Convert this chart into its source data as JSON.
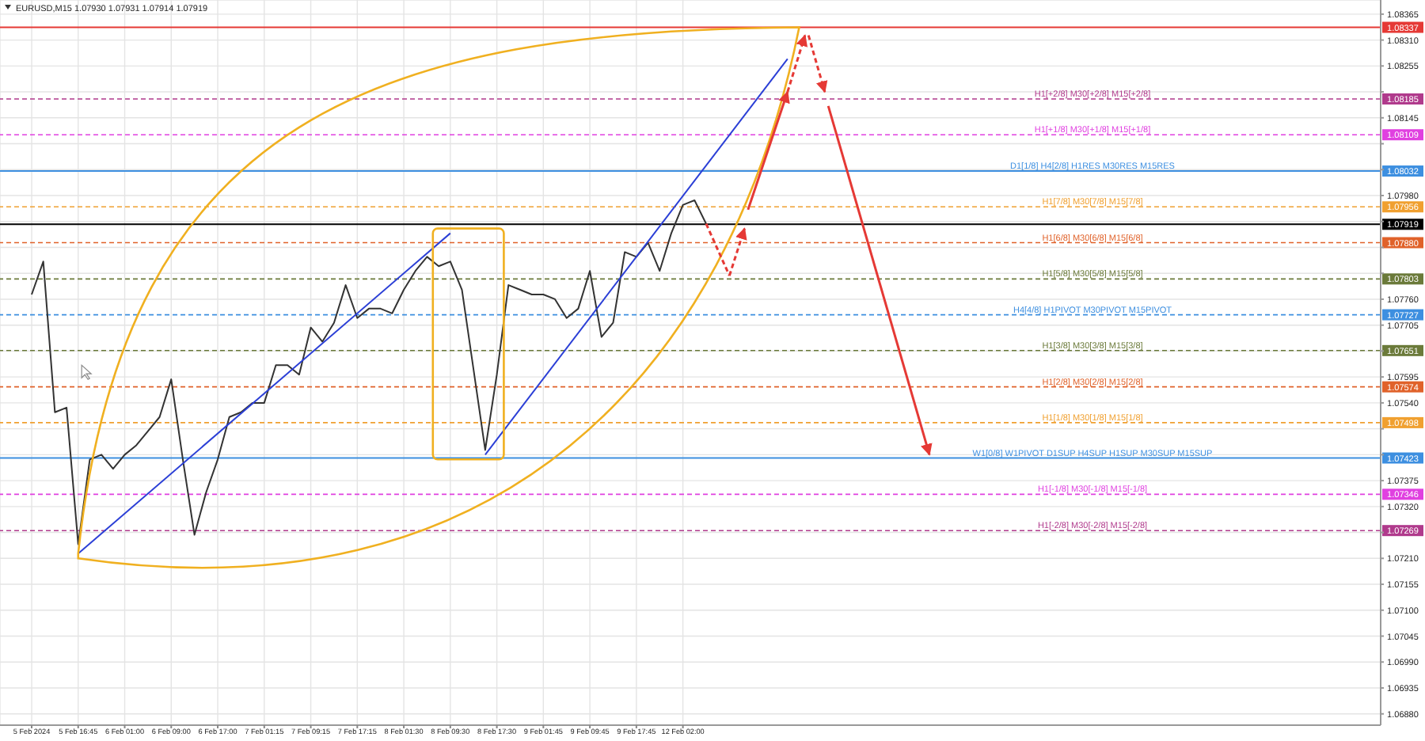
{
  "chart_data": {
    "type": "line",
    "title": "EURUSD,M15 1.07930 1.07931 1.07914 1.07919",
    "categories": [
      "5 Feb 2024",
      null,
      null,
      null,
      "5 Feb 16:45",
      null,
      null,
      null,
      "6 Feb 01:00",
      null,
      null,
      null,
      "6 Feb 09:00",
      null,
      null,
      null,
      "6 Feb 17:00",
      null,
      null,
      null,
      "7 Feb 01:15",
      null,
      null,
      null,
      "7 Feb 09:15",
      null,
      null,
      null,
      "7 Feb 17:15",
      null,
      null,
      null,
      "8 Feb 01:30",
      null,
      null,
      null,
      "8 Feb 09:30",
      null,
      null,
      null,
      "8 Feb 17:30",
      null,
      null,
      null,
      "9 Feb 01:45",
      null,
      null,
      null,
      "9 Feb 09:45",
      null,
      null,
      null,
      "9 Feb 17:45",
      null,
      null,
      null,
      "12 Feb 02:00",
      null,
      null,
      null,
      null,
      null,
      null,
      null,
      null,
      null,
      null,
      null,
      null,
      null,
      null,
      null,
      null,
      null,
      null,
      null,
      null,
      null,
      null,
      null,
      null,
      null,
      null,
      null,
      null,
      null,
      null,
      null,
      null,
      null,
      null,
      null,
      null,
      null,
      null,
      null,
      null,
      null,
      null,
      null,
      null,
      null,
      null,
      null,
      null,
      null,
      null,
      null,
      null,
      null,
      null,
      null,
      null,
      null,
      null,
      null,
      null
    ],
    "series": [
      {
        "color": "#333333",
        "values": [
          1.0777,
          1.0784,
          1.0752,
          1.0753,
          1.0724,
          1.0742,
          1.0743,
          1.074,
          1.0743,
          1.0745,
          1.0748,
          1.0751,
          1.0759,
          1.0742,
          1.0726,
          1.0735,
          1.0742,
          1.0751,
          1.0752,
          1.0754,
          1.0754,
          1.0762,
          1.0762,
          1.076,
          1.077,
          1.0767,
          1.0771,
          1.0779,
          1.0772,
          1.0774,
          1.0774,
          1.0773,
          1.0778,
          1.0782,
          1.0785,
          1.0783,
          1.0784,
          1.0778,
          1.0761,
          1.0744,
          1.076,
          1.0779,
          1.0778,
          1.0777,
          1.0777,
          1.0776,
          1.0772,
          1.0774,
          1.0782,
          1.0768,
          1.0771,
          1.0786,
          1.0785,
          1.0788,
          1.0782,
          1.079,
          1.0796,
          1.0797,
          1.0792,
          null,
          null,
          null,
          null,
          null,
          null,
          null,
          null,
          null,
          null,
          null,
          null,
          null,
          null,
          null,
          null,
          null,
          null,
          null,
          null,
          null,
          null,
          null,
          null,
          null,
          null,
          null,
          null,
          null,
          null,
          null,
          null,
          null,
          null,
          null,
          null,
          null,
          null,
          null,
          null,
          null,
          null,
          null,
          null,
          null,
          null,
          null,
          null,
          null,
          null,
          null,
          null,
          null,
          null,
          null,
          null,
          null,
          null
        ]
      },
      {
        "type": "line",
        "color": "#2b3fd6",
        "values": [
          null,
          null,
          null,
          null,
          1.0722,
          null,
          null,
          null,
          null,
          null,
          null,
          null,
          null,
          null,
          null,
          null,
          null,
          null,
          null,
          null,
          null,
          null,
          null,
          null,
          null,
          null,
          null,
          null,
          null,
          null,
          null,
          null,
          null,
          null,
          null,
          null,
          1.079,
          null,
          null,
          null,
          null,
          null,
          null,
          null,
          null,
          null,
          null,
          null,
          null,
          null,
          null,
          null,
          null,
          null,
          null,
          null,
          null,
          null,
          null,
          null,
          null,
          null,
          null,
          null,
          null,
          null,
          null,
          null,
          null,
          null,
          null,
          null,
          null,
          null,
          null,
          null,
          null,
          null,
          null,
          null,
          null,
          null,
          null,
          null,
          null,
          null,
          null,
          null,
          null,
          null,
          null,
          null,
          null,
          null,
          null,
          null,
          null,
          null,
          null,
          null,
          null,
          null,
          null,
          null,
          null,
          null,
          null,
          null,
          null,
          null,
          null,
          null,
          null,
          null,
          null,
          null,
          null
        ]
      },
      {
        "type": "line",
        "color": "#2b3fd6",
        "values": [
          null,
          null,
          null,
          null,
          null,
          null,
          null,
          null,
          null,
          null,
          null,
          null,
          null,
          null,
          null,
          null,
          null,
          null,
          null,
          null,
          null,
          null,
          null,
          null,
          null,
          null,
          null,
          null,
          null,
          null,
          null,
          null,
          null,
          null,
          null,
          null,
          null,
          null,
          null,
          1.0743,
          null,
          null,
          null,
          null,
          null,
          null,
          null,
          null,
          null,
          null,
          null,
          null,
          null,
          null,
          null,
          null,
          null,
          null,
          null,
          null,
          null,
          null,
          null,
          null,
          null,
          1.0827,
          null,
          null,
          null,
          null,
          null,
          null,
          null,
          null,
          null,
          null,
          null,
          null,
          null,
          null,
          null,
          null,
          null,
          null,
          null,
          null,
          null,
          null,
          null,
          null,
          null,
          null,
          null,
          null,
          null,
          null,
          null,
          null,
          null,
          null,
          null,
          null,
          null,
          null,
          null,
          null,
          null,
          null,
          null,
          null,
          null,
          null,
          null,
          null,
          null,
          null,
          null
        ]
      }
    ],
    "ylim": [
      1.06856,
      1.08395
    ],
    "yticks": [
      1.08365,
      {
        "value": 1.0831,
        "label": "1.08310"
      },
      1.08255,
      {
        "value": 1.082,
        "label": null
      },
      1.08145,
      {
        "value": 1.0809,
        "label": null
      },
      {
        "value": 1.08035,
        "label": null
      },
      {
        "value": 1.0798,
        "label": "1.07980"
      },
      {
        "value": 1.07925,
        "label": null
      },
      {
        "value": 1.0787,
        "label": null
      },
      {
        "value": 1.07815,
        "label": null
      },
      {
        "value": 1.0776,
        "label": "1.07760"
      },
      {
        "value": 1.07705,
        "label": "1.07705"
      },
      {
        "value": 1.0765,
        "label": null
      },
      1.07595,
      {
        "value": 1.0754,
        "label": "1.07540"
      },
      {
        "value": 1.07485,
        "label": null
      },
      {
        "value": 1.0743,
        "label": null
      },
      1.07375,
      {
        "value": 1.0732,
        "label": "1.07320"
      },
      {
        "value": 1.07265,
        "label": null
      },
      {
        "value": 1.0721,
        "label": "1.07210"
      },
      1.07155,
      {
        "value": 1.071,
        "label": "1.07100"
      },
      1.07045,
      {
        "value": 1.0699,
        "label": "1.06990"
      },
      1.06935,
      {
        "value": 1.0688,
        "label": "1.06880"
      }
    ],
    "grid": true,
    "ref_lines": [
      {
        "axis": "y",
        "value": 1.08337,
        "label": "1.08337",
        "color": "#e53935",
        "line_style": "solid"
      },
      {
        "axis": "y",
        "value": 1.08185,
        "label": "1.08185",
        "color": "#b03a8c",
        "line_style": "dashed"
      },
      {
        "axis": "y",
        "value": 1.08109,
        "label": "1.08109",
        "color": "#e040e0",
        "line_style": "dashed"
      },
      {
        "axis": "y",
        "value": 1.08032,
        "label": "1.08032",
        "color": "#3d8fe0",
        "line_style": "solid"
      },
      {
        "axis": "y",
        "value": 1.07956,
        "label": "1.07956",
        "color": "#f0a030",
        "line_style": "dashed"
      },
      {
        "axis": "y",
        "value": 1.07919,
        "label": "1.07919",
        "color": "#000000",
        "line_style": "solid"
      },
      {
        "axis": "y",
        "value": 1.0788,
        "label": "1.07880",
        "color": "#e0622a",
        "line_style": "dashed"
      },
      {
        "axis": "y",
        "value": 1.07803,
        "label": "1.07803",
        "color": "#6b7a3a",
        "line_style": "dashed"
      },
      {
        "axis": "y",
        "value": 1.07727,
        "label": "1.07727",
        "color": "#3d8fe0",
        "line_style": "dashed"
      },
      {
        "axis": "y",
        "value": 1.07651,
        "label": "1.07651",
        "color": "#6b7a3a",
        "line_style": "dashed"
      },
      {
        "axis": "y",
        "value": 1.07574,
        "label": "1.07574",
        "color": "#e0622a",
        "line_style": "dashed"
      },
      {
        "axis": "y",
        "value": 1.07498,
        "label": "1.07498",
        "color": "#f0a030",
        "line_style": "dashed"
      },
      {
        "axis": "y",
        "value": 1.07423,
        "label": "1.07423",
        "color": "#3d8fe0",
        "line_style": "solid"
      },
      {
        "axis": "y",
        "value": 1.07346,
        "label": "1.07346",
        "color": "#e040e0",
        "line_style": "dashed"
      },
      {
        "axis": "y",
        "value": 1.07269,
        "label": "1.07269",
        "color": "#b03a8c",
        "line_style": "dashed"
      }
    ],
    "annotations": [
      {
        "text": "H1[+2/8] M30[+2/8] M15[+2/8]",
        "y": 1.08185
      },
      {
        "text": "H1[+1/8] M30[+1/8] M15[+1/8]",
        "y": 1.08109
      },
      {
        "text": "D1[1/8] H4[2/8] H1RES M30RES M15RES",
        "y": 1.08032
      },
      {
        "text": "H1[7/8] M30[7/8] M15[7/8]",
        "y": 1.07956
      },
      {
        "text": "H1[6/8] M30[6/8] M15[6/8]",
        "y": 1.0788
      },
      {
        "text": "H1[5/8] M30[5/8] M15[5/8]",
        "y": 1.07803
      },
      {
        "text": "H4[4/8] H1PIVOT M30PIVOT M15PIVOT",
        "y": 1.07727
      },
      {
        "text": "H1[3/8] M30[3/8] M15[3/8]",
        "y": 1.07651
      },
      {
        "text": "H1[2/8] M30[2/8] M15[2/8]",
        "y": 1.07574
      },
      {
        "text": "H1[1/8] M30[1/8] M15[1/8]",
        "y": 1.07498
      },
      {
        "text": "W1[0/8] W1PIVOT D1SUP H4SUP H1SUP M30SUP M15SUP",
        "y": 1.07423
      },
      {
        "text": "H1[-1/8] M30[-1/8] M15[-1/8]",
        "y": 1.07346
      },
      {
        "text": "H1[-2/8] M30[-2/8] M15[-2/8]",
        "y": 1.07269
      }
    ]
  }
}
